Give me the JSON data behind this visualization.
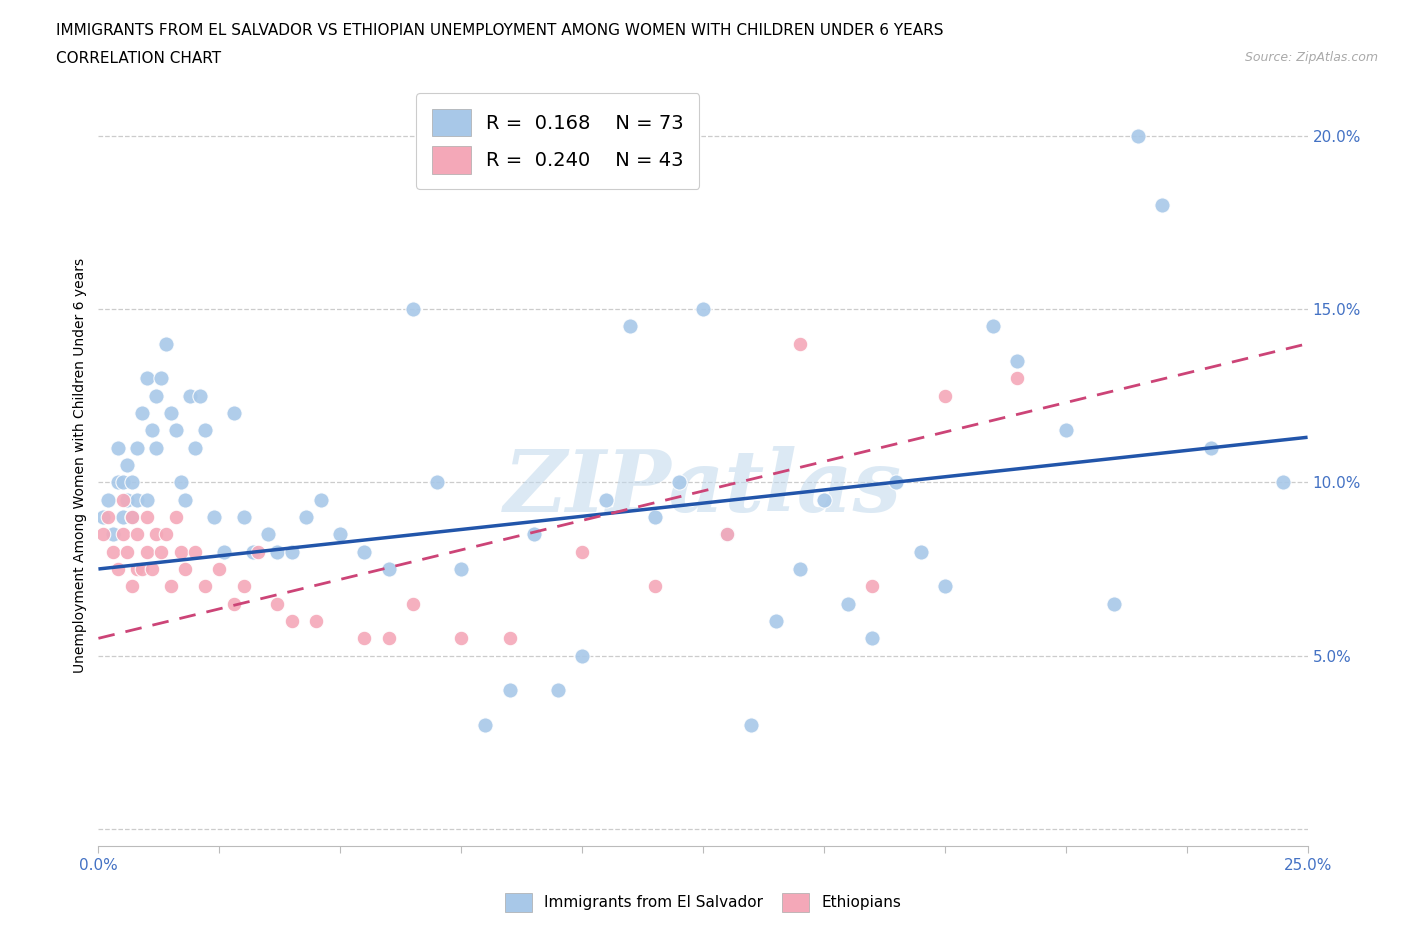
{
  "title_line1": "IMMIGRANTS FROM EL SALVADOR VS ETHIOPIAN UNEMPLOYMENT AMONG WOMEN WITH CHILDREN UNDER 6 YEARS",
  "title_line2": "CORRELATION CHART",
  "source_text": "Source: ZipAtlas.com",
  "ylabel": "Unemployment Among Women with Children Under 6 years",
  "xlim": [
    0.0,
    0.25
  ],
  "ylim": [
    -0.005,
    0.215
  ],
  "xticks": [
    0.0,
    0.025,
    0.05,
    0.075,
    0.1,
    0.125,
    0.15,
    0.175,
    0.2,
    0.225,
    0.25
  ],
  "xtick_labels": [
    "0.0%",
    "",
    "",
    "",
    "",
    "",
    "",
    "",
    "",
    "",
    "25.0%"
  ],
  "yticks": [
    0.0,
    0.05,
    0.1,
    0.15,
    0.2
  ],
  "ytick_labels": [
    "",
    "5.0%",
    "10.0%",
    "15.0%",
    "20.0%"
  ],
  "blue_color": "#a8c8e8",
  "pink_color": "#f4a8b8",
  "blue_line_color": "#2255aa",
  "pink_line_color": "#cc4477",
  "grid_color": "#cccccc",
  "tick_label_color": "#4472c4",
  "blue_scatter_x": [
    0.001,
    0.002,
    0.003,
    0.004,
    0.004,
    0.005,
    0.005,
    0.006,
    0.006,
    0.007,
    0.007,
    0.008,
    0.008,
    0.009,
    0.01,
    0.01,
    0.011,
    0.012,
    0.012,
    0.013,
    0.014,
    0.015,
    0.016,
    0.017,
    0.018,
    0.019,
    0.02,
    0.021,
    0.022,
    0.024,
    0.026,
    0.028,
    0.03,
    0.032,
    0.035,
    0.037,
    0.04,
    0.043,
    0.046,
    0.05,
    0.055,
    0.06,
    0.065,
    0.07,
    0.075,
    0.08,
    0.085,
    0.09,
    0.095,
    0.1,
    0.105,
    0.11,
    0.115,
    0.12,
    0.125,
    0.13,
    0.135,
    0.14,
    0.145,
    0.15,
    0.155,
    0.16,
    0.165,
    0.17,
    0.175,
    0.185,
    0.19,
    0.2,
    0.21,
    0.215,
    0.22,
    0.23,
    0.245
  ],
  "blue_scatter_y": [
    0.09,
    0.095,
    0.085,
    0.1,
    0.11,
    0.09,
    0.1,
    0.095,
    0.105,
    0.09,
    0.1,
    0.11,
    0.095,
    0.12,
    0.095,
    0.13,
    0.115,
    0.11,
    0.125,
    0.13,
    0.14,
    0.12,
    0.115,
    0.1,
    0.095,
    0.125,
    0.11,
    0.125,
    0.115,
    0.09,
    0.08,
    0.12,
    0.09,
    0.08,
    0.085,
    0.08,
    0.08,
    0.09,
    0.095,
    0.085,
    0.08,
    0.075,
    0.15,
    0.1,
    0.075,
    0.03,
    0.04,
    0.085,
    0.04,
    0.05,
    0.095,
    0.145,
    0.09,
    0.1,
    0.15,
    0.085,
    0.03,
    0.06,
    0.075,
    0.095,
    0.065,
    0.055,
    0.1,
    0.08,
    0.07,
    0.145,
    0.135,
    0.115,
    0.065,
    0.2,
    0.18,
    0.11,
    0.1
  ],
  "pink_scatter_x": [
    0.001,
    0.002,
    0.003,
    0.004,
    0.005,
    0.005,
    0.006,
    0.007,
    0.007,
    0.008,
    0.008,
    0.009,
    0.01,
    0.01,
    0.011,
    0.012,
    0.013,
    0.014,
    0.015,
    0.016,
    0.017,
    0.018,
    0.02,
    0.022,
    0.025,
    0.028,
    0.03,
    0.033,
    0.037,
    0.04,
    0.045,
    0.055,
    0.06,
    0.065,
    0.075,
    0.085,
    0.1,
    0.115,
    0.13,
    0.145,
    0.16,
    0.175,
    0.19
  ],
  "pink_scatter_y": [
    0.085,
    0.09,
    0.08,
    0.075,
    0.085,
    0.095,
    0.08,
    0.07,
    0.09,
    0.075,
    0.085,
    0.075,
    0.08,
    0.09,
    0.075,
    0.085,
    0.08,
    0.085,
    0.07,
    0.09,
    0.08,
    0.075,
    0.08,
    0.07,
    0.075,
    0.065,
    0.07,
    0.08,
    0.065,
    0.06,
    0.06,
    0.055,
    0.055,
    0.065,
    0.055,
    0.055,
    0.08,
    0.07,
    0.085,
    0.14,
    0.07,
    0.125,
    0.13
  ],
  "blue_trend_start": 0.075,
  "blue_trend_end": 0.113,
  "pink_trend_start": 0.055,
  "pink_trend_end": 0.14,
  "watermark_text": "ZIPatlas",
  "watermark_color": "#c0d8ec",
  "watermark_alpha": 0.55,
  "legend_fontsize": 14,
  "title_fontsize": 11,
  "tick_fontsize": 11
}
